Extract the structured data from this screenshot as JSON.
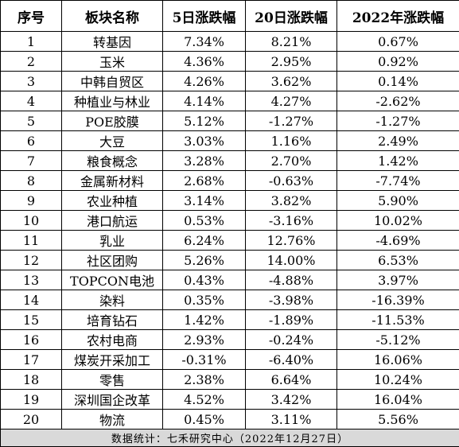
{
  "chart_data": {
    "type": "table",
    "columns": [
      "序号",
      "板块名称",
      "5日涨跌幅",
      "20日涨跌幅",
      "2022年涨跌幅"
    ],
    "rows": [
      [
        "1",
        "转基因",
        "7.34%",
        "8.21%",
        "0.67%"
      ],
      [
        "2",
        "玉米",
        "4.36%",
        "2.95%",
        "0.92%"
      ],
      [
        "3",
        "中韩自贸区",
        "4.26%",
        "3.62%",
        "0.14%"
      ],
      [
        "4",
        "种植业与林业",
        "4.14%",
        "4.27%",
        "-2.62%"
      ],
      [
        "5",
        "POE胶膜",
        "5.12%",
        "-1.27%",
        "-1.27%"
      ],
      [
        "6",
        "大豆",
        "3.03%",
        "1.16%",
        "2.49%"
      ],
      [
        "7",
        "粮食概念",
        "3.28%",
        "2.70%",
        "1.42%"
      ],
      [
        "8",
        "金属新材料",
        "2.68%",
        "-0.63%",
        "-7.74%"
      ],
      [
        "9",
        "农业种植",
        "3.14%",
        "3.82%",
        "5.90%"
      ],
      [
        "10",
        "港口航运",
        "0.53%",
        "-3.16%",
        "10.02%"
      ],
      [
        "11",
        "乳业",
        "6.24%",
        "12.76%",
        "-4.69%"
      ],
      [
        "12",
        "社区团购",
        "5.26%",
        "14.00%",
        "6.53%"
      ],
      [
        "13",
        "TOPCON电池",
        "0.43%",
        "-4.88%",
        "3.97%"
      ],
      [
        "14",
        "染料",
        "0.35%",
        "-3.98%",
        "-16.39%"
      ],
      [
        "15",
        "培育钻石",
        "1.42%",
        "-1.89%",
        "-11.53%"
      ],
      [
        "16",
        "农村电商",
        "2.93%",
        "-0.24%",
        "-5.12%"
      ],
      [
        "17",
        "煤炭开采加工",
        "-0.31%",
        "-6.40%",
        "16.06%"
      ],
      [
        "18",
        "零售",
        "2.38%",
        "6.64%",
        "10.24%"
      ],
      [
        "19",
        "深圳国企改革",
        "4.52%",
        "3.42%",
        "16.04%"
      ],
      [
        "20",
        "物流",
        "0.45%",
        "3.11%",
        "5.56%"
      ]
    ],
    "footer": "数据统计：七禾研究中心（2022年12月27日）",
    "colors": {
      "border": "#000000",
      "footer_bg": "#d9d9d9"
    }
  }
}
